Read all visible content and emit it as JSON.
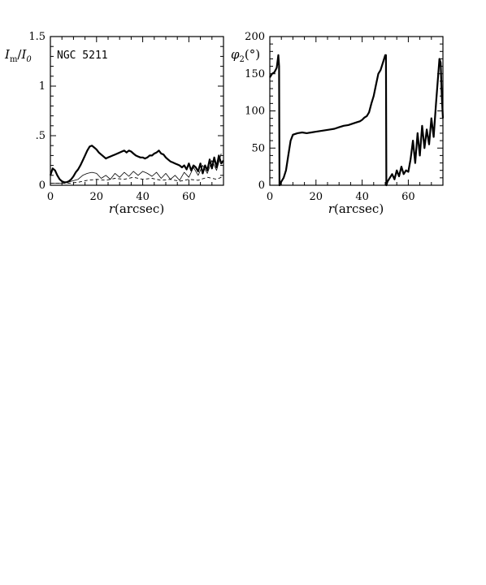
{
  "chart_data": [
    {
      "type": "line",
      "annotation": "NGC 5211",
      "ylabel": "I_m/I_0",
      "xlabel": "r(arcsec)",
      "xlim": [
        0,
        75
      ],
      "ylim": [
        0,
        1.5
      ],
      "xticks": [
        0,
        20,
        40,
        60
      ],
      "yticks": [
        0,
        0.5,
        1,
        1.5
      ],
      "ytick_labels": [
        "0",
        ".5",
        "1",
        "1.5"
      ],
      "series": [
        {
          "style": "solid-thick",
          "x": [
            0,
            1,
            2,
            3,
            4,
            5,
            6,
            7,
            8,
            9,
            10,
            11,
            12,
            13,
            14,
            15,
            16,
            17,
            18,
            19,
            20,
            21,
            22,
            23,
            24,
            25,
            26,
            27,
            28,
            29,
            30,
            31,
            32,
            33,
            34,
            35,
            36,
            37,
            38,
            39,
            40,
            41,
            42,
            43,
            44,
            45,
            46,
            47,
            48,
            49,
            50,
            51,
            52,
            53,
            54,
            55,
            56,
            57,
            58,
            59,
            60,
            61,
            62,
            63,
            64,
            65,
            66,
            67,
            68,
            69,
            70,
            71,
            72,
            73,
            74,
            75
          ],
          "y": [
            0.1,
            0.17,
            0.15,
            0.1,
            0.06,
            0.04,
            0.03,
            0.03,
            0.04,
            0.06,
            0.09,
            0.13,
            0.16,
            0.2,
            0.25,
            0.3,
            0.35,
            0.39,
            0.4,
            0.38,
            0.36,
            0.33,
            0.31,
            0.29,
            0.27,
            0.28,
            0.29,
            0.3,
            0.31,
            0.32,
            0.33,
            0.34,
            0.35,
            0.33,
            0.35,
            0.34,
            0.32,
            0.3,
            0.29,
            0.28,
            0.28,
            0.27,
            0.28,
            0.3,
            0.3,
            0.32,
            0.33,
            0.35,
            0.32,
            0.31,
            0.28,
            0.26,
            0.24,
            0.23,
            0.22,
            0.21,
            0.2,
            0.18,
            0.2,
            0.16,
            0.22,
            0.15,
            0.2,
            0.18,
            0.14,
            0.22,
            0.12,
            0.2,
            0.15,
            0.26,
            0.17,
            0.28,
            0.18,
            0.3,
            0.22,
            0.25
          ]
        },
        {
          "style": "solid-thin",
          "x": [
            0,
            3,
            6,
            9,
            12,
            14,
            16,
            18,
            20,
            22,
            24,
            26,
            28,
            30,
            32,
            34,
            36,
            38,
            40,
            42,
            44,
            46,
            48,
            50,
            52,
            54,
            56,
            58,
            60,
            62,
            64,
            66,
            68,
            70,
            72,
            74
          ],
          "y": [
            0.02,
            0.02,
            0.02,
            0.04,
            0.06,
            0.1,
            0.12,
            0.13,
            0.12,
            0.07,
            0.1,
            0.06,
            0.12,
            0.08,
            0.13,
            0.09,
            0.14,
            0.1,
            0.14,
            0.12,
            0.09,
            0.13,
            0.07,
            0.12,
            0.06,
            0.1,
            0.05,
            0.13,
            0.08,
            0.18,
            0.1,
            0.2,
            0.12,
            0.25,
            0.15,
            0.32
          ]
        },
        {
          "style": "dashed",
          "x": [
            0,
            4,
            8,
            12,
            16,
            20,
            24,
            28,
            32,
            36,
            40,
            44,
            48,
            52,
            56,
            60,
            64,
            68,
            72,
            75
          ],
          "y": [
            0.02,
            0.02,
            0.02,
            0.03,
            0.05,
            0.06,
            0.05,
            0.07,
            0.06,
            0.08,
            0.06,
            0.07,
            0.05,
            0.06,
            0.04,
            0.06,
            0.05,
            0.08,
            0.06,
            0.09
          ]
        }
      ]
    },
    {
      "type": "line",
      "ylabel": "φ2(°)",
      "xlabel": "r(arcsec)",
      "xlim": [
        0,
        75
      ],
      "ylim": [
        0,
        200
      ],
      "xticks": [
        0,
        20,
        40,
        60
      ],
      "yticks": [
        0,
        50,
        100,
        150,
        200
      ],
      "ytick_labels": [
        "0",
        "50",
        "100",
        "150",
        "200"
      ],
      "series": [
        {
          "style": "solid-thick",
          "x": [
            0,
            1,
            2,
            3,
            3.7,
            4,
            4.2,
            4.5,
            5,
            6,
            7,
            8,
            9,
            10,
            12,
            14,
            16,
            18,
            20,
            22,
            24,
            26,
            28,
            30,
            32,
            34,
            36,
            38,
            39,
            40,
            41,
            42,
            43,
            44,
            45,
            46,
            47,
            48,
            49,
            50,
            50.3,
            50.5,
            51,
            52,
            53,
            54,
            55,
            56,
            57,
            58,
            59,
            60,
            61,
            62,
            63,
            64,
            65,
            66,
            67,
            68,
            69,
            70,
            71,
            72,
            73,
            73.5,
            74,
            74.5,
            75
          ],
          "y": [
            145,
            150,
            152,
            158,
            175,
            160,
            0,
            2,
            5,
            10,
            20,
            40,
            60,
            68,
            70,
            71,
            70,
            71,
            72,
            73,
            74,
            75,
            76,
            78,
            80,
            81,
            83,
            85,
            86,
            88,
            91,
            93,
            98,
            110,
            120,
            135,
            150,
            155,
            165,
            175,
            175,
            0,
            5,
            10,
            15,
            8,
            20,
            12,
            25,
            15,
            20,
            18,
            35,
            60,
            30,
            70,
            40,
            80,
            50,
            75,
            55,
            90,
            65,
            110,
            150,
            170,
            165,
            120,
            90
          ]
        }
      ]
    }
  ]
}
